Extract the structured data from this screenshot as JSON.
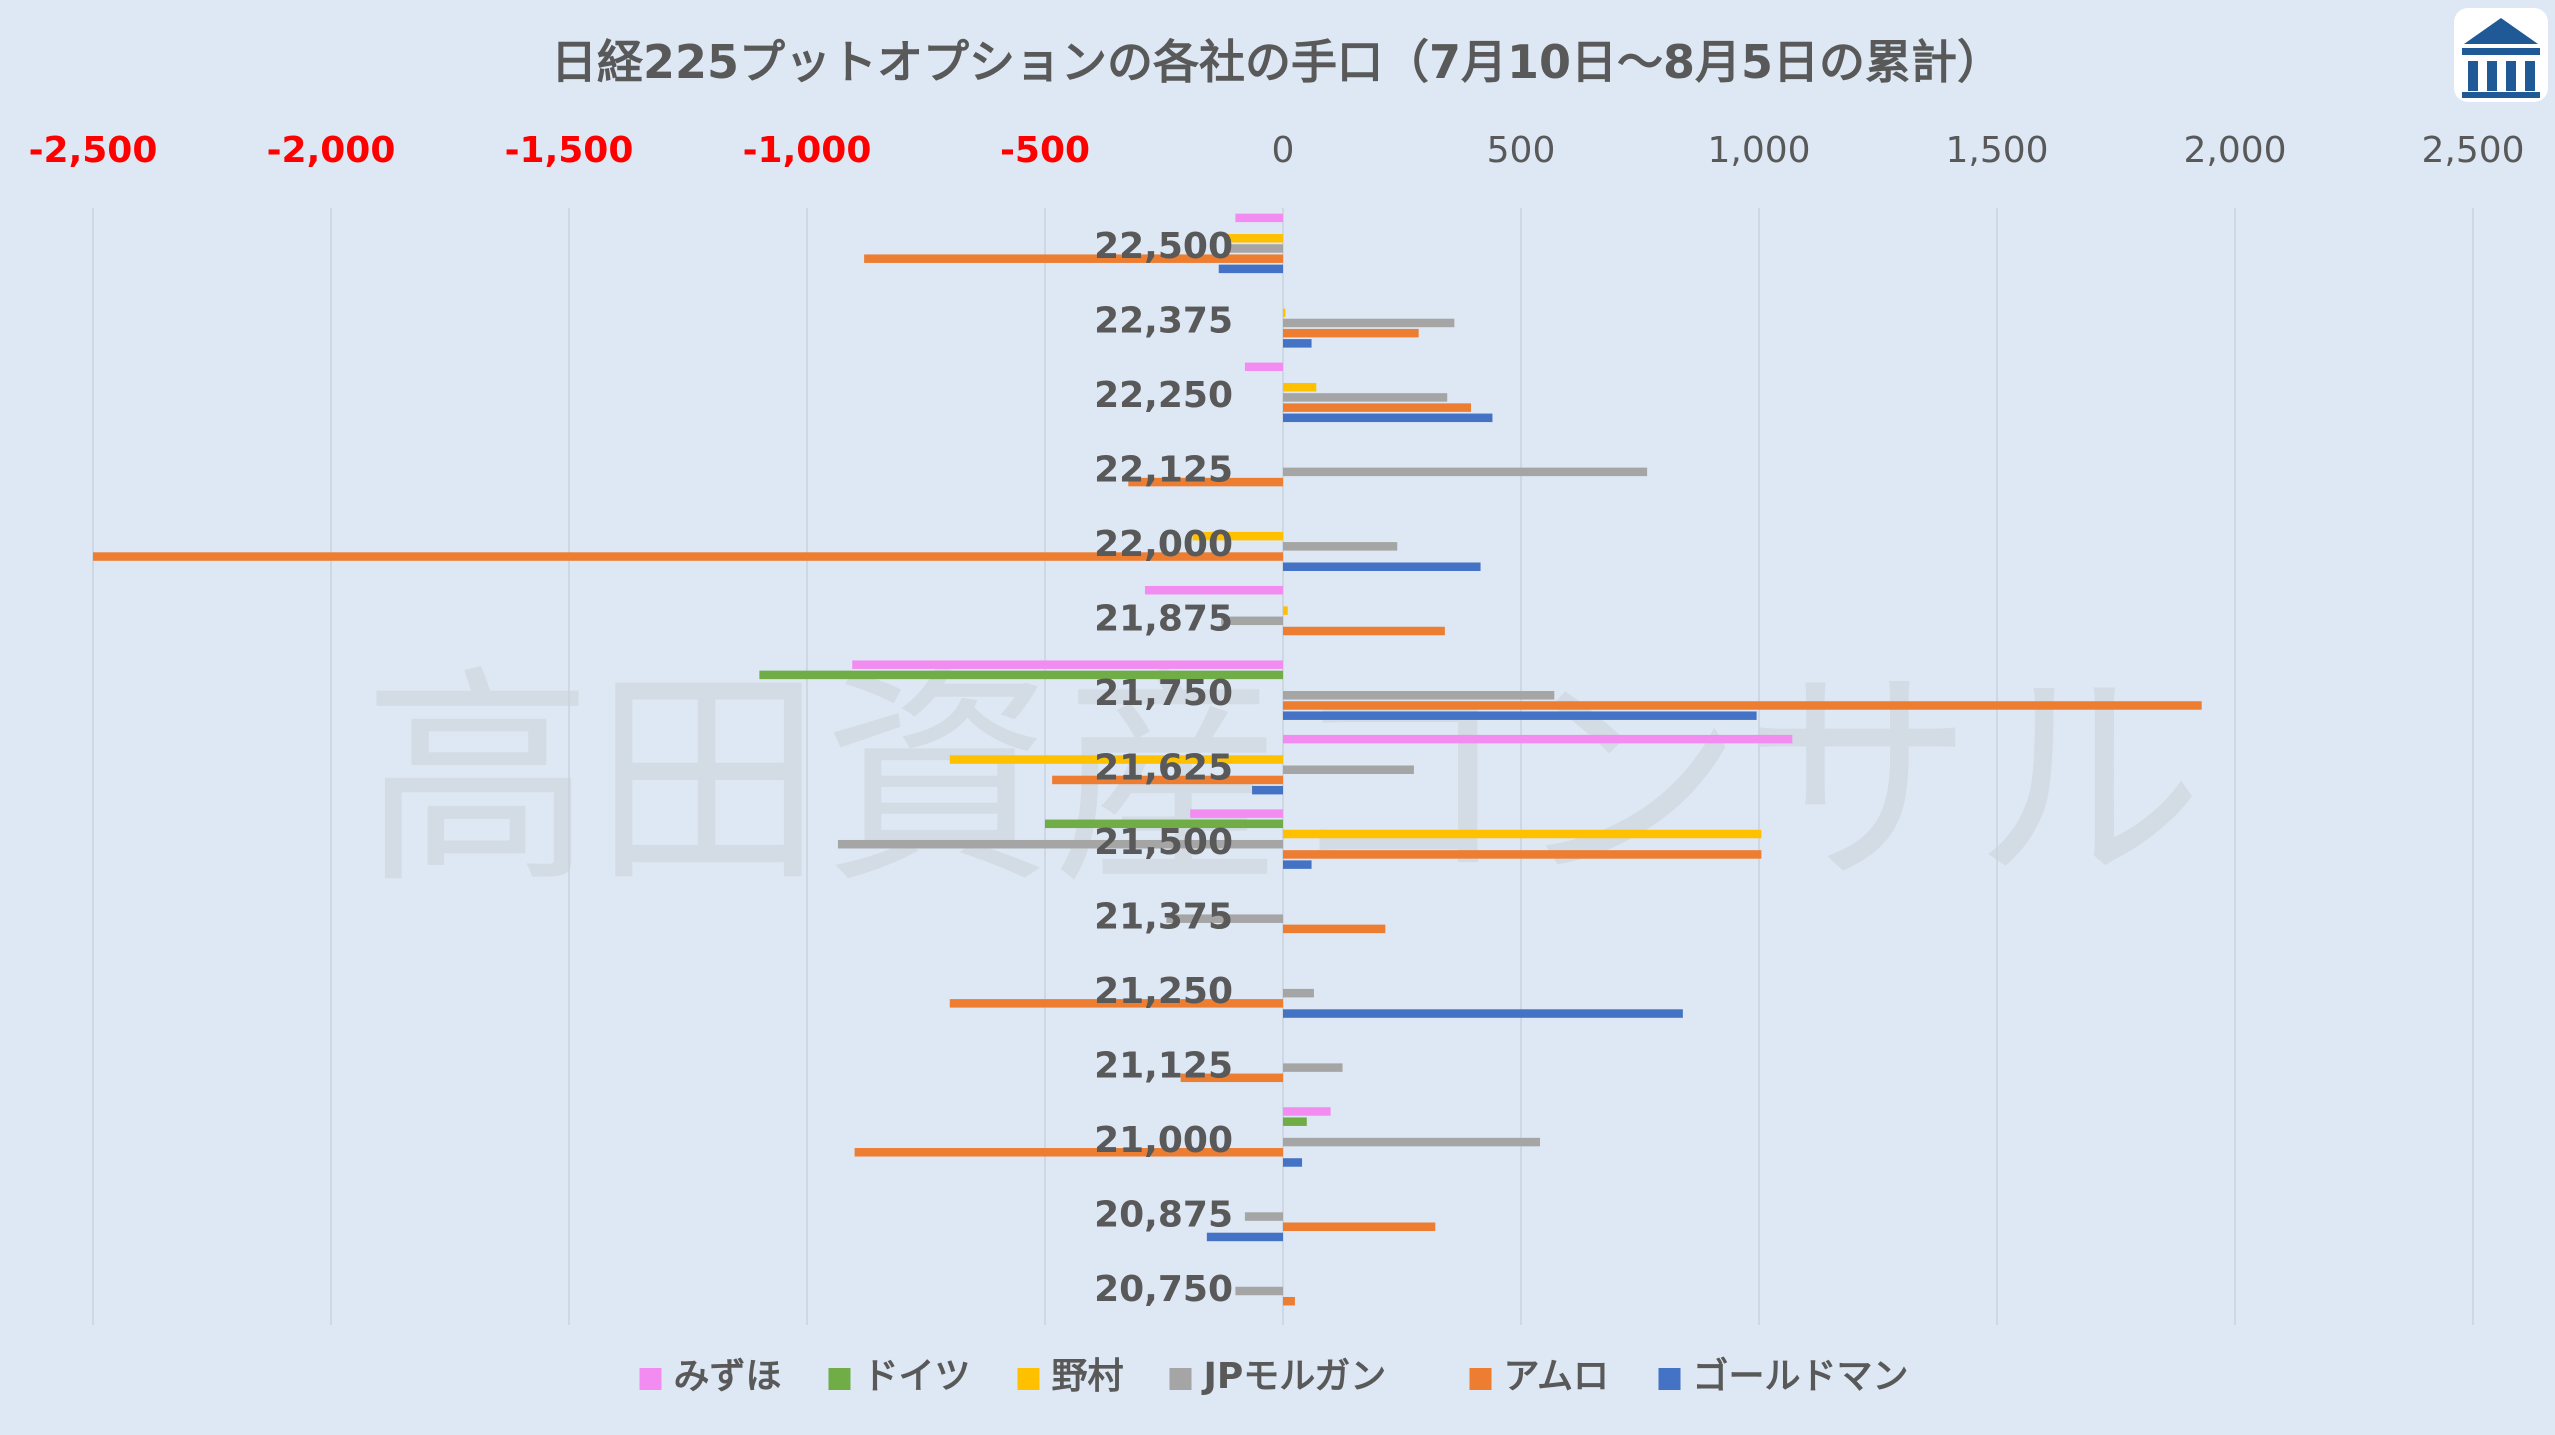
{
  "chart_data": {
    "type": "bar",
    "orientation": "horizontal",
    "title": "日経225プットオプションの各社の手口（7月10日～8月5日の累計）",
    "watermark": "高田資産コンサル",
    "xlim": [
      -2500,
      2500
    ],
    "x_ticks": [
      {
        "value": -2500,
        "label": "-2,500"
      },
      {
        "value": -2000,
        "label": "-2,000"
      },
      {
        "value": -1500,
        "label": "-1,500"
      },
      {
        "value": -1000,
        "label": "-1,000"
      },
      {
        "value": -500,
        "label": "-500"
      },
      {
        "value": 0,
        "label": "0"
      },
      {
        "value": 500,
        "label": "500"
      },
      {
        "value": 1000,
        "label": "1,000"
      },
      {
        "value": 1500,
        "label": "1,500"
      },
      {
        "value": 2000,
        "label": "2,000"
      },
      {
        "value": 2500,
        "label": "2,500"
      }
    ],
    "negative_tick_color": "#ff0000",
    "positive_tick_color": "#595959",
    "gridlines": true,
    "legend_position": "bottom",
    "categories": [
      "22,500",
      "22,375",
      "22,250",
      "22,125",
      "22,000",
      "21,875",
      "21,750",
      "21,625",
      "21,500",
      "21,375",
      "21,250",
      "21,125",
      "21,000",
      "20,875",
      "20,750"
    ],
    "series": [
      {
        "name": "みずほ",
        "color": "#f28cf0",
        "values": [
          -100,
          0,
          -80,
          0,
          0,
          -290,
          -905,
          1070,
          -195,
          0,
          0,
          0,
          100,
          0,
          0
        ]
      },
      {
        "name": "ドイツ",
        "color": "#70ad47",
        "values": [
          0,
          0,
          0,
          0,
          0,
          0,
          -1100,
          0,
          -500,
          0,
          0,
          0,
          50,
          0,
          0
        ]
      },
      {
        "name": "野村",
        "color": "#ffc000",
        "values": [
          -120,
          5,
          70,
          0,
          -190,
          10,
          0,
          -700,
          1005,
          0,
          0,
          0,
          0,
          0,
          0
        ]
      },
      {
        "name": "JPモルガン",
        "color": "#a5a5a5",
        "values": [
          -120,
          360,
          345,
          765,
          240,
          -130,
          570,
          275,
          -935,
          -245,
          65,
          125,
          540,
          -80,
          -100
        ]
      },
      {
        "name": "アムロ",
        "color": "#ed7d31",
        "values": [
          -880,
          285,
          395,
          -325,
          -2500,
          340,
          1930,
          -485,
          1005,
          215,
          -700,
          -215,
          -900,
          320,
          25
        ]
      },
      {
        "name": "ゴールドマン",
        "color": "#4472c4",
        "values": [
          -135,
          60,
          440,
          0,
          415,
          0,
          995,
          -65,
          60,
          0,
          840,
          0,
          40,
          -160,
          0
        ]
      }
    ]
  },
  "logo": {
    "icon": "building-pillars-icon",
    "color": "#1f5a96"
  }
}
